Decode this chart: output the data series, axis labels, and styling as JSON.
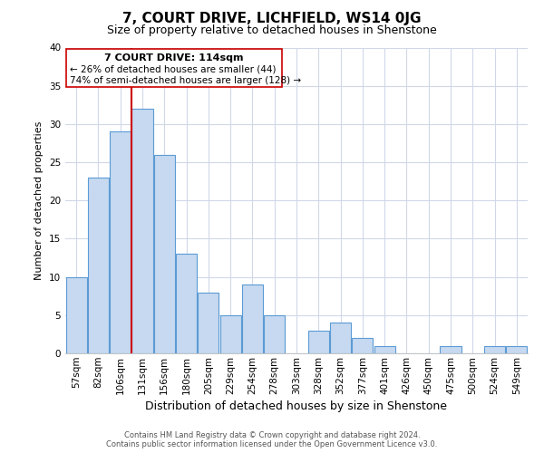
{
  "title": "7, COURT DRIVE, LICHFIELD, WS14 0JG",
  "subtitle": "Size of property relative to detached houses in Shenstone",
  "xlabel": "Distribution of detached houses by size in Shenstone",
  "ylabel": "Number of detached properties",
  "bar_labels": [
    "57sqm",
    "82sqm",
    "106sqm",
    "131sqm",
    "156sqm",
    "180sqm",
    "205sqm",
    "229sqm",
    "254sqm",
    "278sqm",
    "303sqm",
    "328sqm",
    "352sqm",
    "377sqm",
    "401sqm",
    "426sqm",
    "450sqm",
    "475sqm",
    "500sqm",
    "524sqm",
    "549sqm"
  ],
  "bar_values": [
    10,
    23,
    29,
    32,
    26,
    13,
    8,
    5,
    9,
    5,
    0,
    3,
    4,
    2,
    1,
    0,
    0,
    1,
    0,
    1,
    1
  ],
  "bar_color": "#c6d9f0",
  "bar_edge_color": "#5b9bd5",
  "ylim": [
    0,
    40
  ],
  "yticks": [
    0,
    5,
    10,
    15,
    20,
    25,
    30,
    35,
    40
  ],
  "ref_line_color": "#cc0000",
  "annotation_title": "7 COURT DRIVE: 114sqm",
  "annotation_line1": "← 26% of detached houses are smaller (44)",
  "annotation_line2": "74% of semi-detached houses are larger (128) →",
  "footer_line1": "Contains HM Land Registry data © Crown copyright and database right 2024.",
  "footer_line2": "Contains public sector information licensed under the Open Government Licence v3.0.",
  "background_color": "#ffffff",
  "grid_color": "#d0d8e8",
  "title_fontsize": 11,
  "subtitle_fontsize": 9,
  "ylabel_fontsize": 8,
  "xlabel_fontsize": 9,
  "tick_fontsize": 7.5,
  "footer_fontsize": 6
}
